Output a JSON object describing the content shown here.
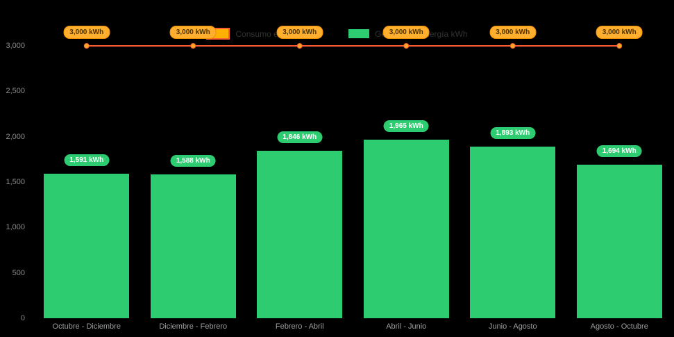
{
  "legend": {
    "items": [
      {
        "label": "Consumo energía kWh"
      },
      {
        "label": "Generación energía kWh"
      }
    ]
  },
  "chart_data": {
    "type": "bar",
    "subtype": "bar-with-constant-line",
    "title": "",
    "xlabel": "",
    "ylabel": "",
    "background": "#000000",
    "grid": false,
    "legend_position": "top",
    "categories": [
      "Octubre - Diciembre",
      "Diciembre - Febrero",
      "Febrero - Abril",
      "Abril - Junio",
      "Junio - Agosto",
      "Agosto - Octubre"
    ],
    "ylim": [
      0,
      3000
    ],
    "yticks": [
      0,
      500,
      1000,
      1500,
      2000,
      2500,
      3000
    ],
    "ytick_labels": [
      "0",
      "500",
      "1,000",
      "1,500",
      "2,000",
      "2,500",
      "3,000"
    ],
    "series": [
      {
        "name": "Consumo energía kWh",
        "type": "line",
        "values": [
          3000,
          3000,
          3000,
          3000,
          3000,
          3000
        ],
        "labels": [
          "3,000 kWh",
          "3,000 kWh",
          "3,000 kWh",
          "3,000 kWh",
          "3,000 kWh",
          "3,000 kWh"
        ],
        "color": "#ff5c33",
        "marker_color": "#ffa726",
        "badge_bg": "#ffae2e",
        "badge_border": "#f09000",
        "badge_text": "#4a3400",
        "swatch_bg": "#ffb300",
        "swatch_border": "#ff5c33"
      },
      {
        "name": "Generación energía kWh",
        "type": "bar",
        "values": [
          1591,
          1588,
          1846,
          1965,
          1893,
          1694
        ],
        "labels": [
          "1,591 kWh",
          "1,588 kWh",
          "1,846 kWh",
          "1,965 kWh",
          "1,893 kWh",
          "1,694 kWh"
        ],
        "color": "#2ecc71",
        "badge_bg": "#2ecc71",
        "badge_text": "#ffffff"
      }
    ]
  }
}
